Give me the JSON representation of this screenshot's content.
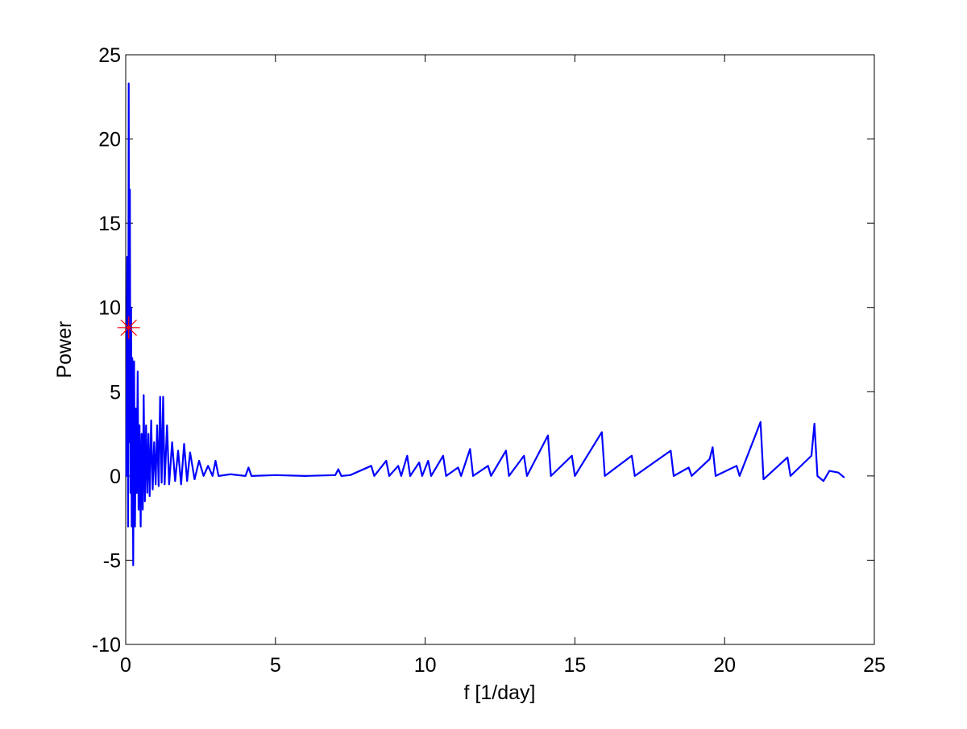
{
  "chart_data": {
    "type": "line",
    "xlabel": "f [1/day]",
    "ylabel": "Power",
    "xlim": [
      0,
      25
    ],
    "xticks": [
      0,
      5,
      10,
      15,
      20,
      25
    ],
    "ylim": [
      -10,
      25
    ],
    "yticks": [
      -10,
      -5,
      0,
      5,
      10,
      15,
      20,
      25
    ],
    "grid": false,
    "box": true,
    "series": [
      {
        "color": "#0000ff",
        "marker": "none",
        "x": [
          0,
          0.02,
          0.05,
          0.08,
          0.1,
          0.12,
          0.14,
          0.16,
          0.18,
          0.2,
          0.22,
          0.25,
          0.28,
          0.31,
          0.34,
          0.37,
          0.4,
          0.43,
          0.46,
          0.5,
          0.53,
          0.57,
          0.6,
          0.64,
          0.68,
          0.72,
          0.76,
          0.8,
          0.85,
          0.9,
          0.95,
          1.0,
          1.05,
          1.1,
          1.15,
          1.2,
          1.25,
          1.3,
          1.38,
          1.45,
          1.55,
          1.65,
          1.75,
          1.85,
          1.95,
          2.05,
          2.15,
          2.3,
          2.45,
          2.6,
          2.75,
          2.9,
          3.0,
          3.1,
          3.5,
          4.0,
          4.1,
          4.2,
          5,
          6,
          7,
          7.1,
          7.2,
          7.5,
          8.2,
          8.3,
          8.7,
          8.8,
          9.1,
          9.2,
          9.4,
          9.5,
          9.8,
          9.9,
          10.1,
          10.2,
          10.6,
          10.7,
          11.1,
          11.2,
          11.5,
          11.6,
          12.1,
          12.2,
          12.7,
          12.8,
          13.3,
          13.4,
          14.1,
          14.2,
          14.9,
          15.0,
          15.9,
          16.0,
          16.9,
          17.0,
          18.2,
          18.3,
          18.8,
          18.9,
          19.5,
          19.6,
          19.7,
          20.4,
          20.5,
          21.2,
          21.3,
          22.1,
          22.2,
          22.9,
          23.0,
          23.1,
          23.3,
          23.5,
          23.8,
          24.0
        ],
        "values": [
          0,
          0,
          13,
          -3,
          23.3,
          2,
          17,
          -1,
          10,
          -3,
          7,
          -5.3,
          6.8,
          -3,
          4,
          -1,
          6.2,
          -2,
          3,
          -3,
          2.5,
          -2,
          4.8,
          -1.5,
          3,
          -1,
          2.5,
          -1.2,
          3.3,
          -0.8,
          2,
          -0.5,
          3,
          -0.6,
          4.7,
          -0.4,
          4.7,
          -0.5,
          3,
          -0.5,
          2,
          -0.3,
          1.5,
          -0.5,
          1.9,
          -0.3,
          1.4,
          -0.2,
          0.9,
          0,
          0.6,
          0,
          0.9,
          0,
          0.1,
          0,
          0.5,
          0,
          0.05,
          0,
          0.05,
          0.4,
          0,
          0.05,
          0.6,
          0,
          0.9,
          0,
          0.6,
          0,
          1.2,
          0,
          0.8,
          0,
          0.9,
          0,
          1.2,
          0,
          0.5,
          0,
          1.6,
          0,
          0.6,
          0,
          1.5,
          0,
          1.2,
          0,
          2.4,
          0,
          1.2,
          0,
          2.6,
          0,
          1.2,
          0,
          1.5,
          0,
          0.5,
          0,
          1.0,
          1.7,
          0,
          0.6,
          0,
          3.2,
          -0.2,
          1.1,
          0,
          1.2,
          3.1,
          0,
          -0.3,
          0.3,
          0.2,
          -0.1
        ]
      },
      {
        "color": "#ff0000",
        "marker": "*",
        "x": [
          0.1
        ],
        "values": [
          8.8
        ]
      }
    ]
  }
}
